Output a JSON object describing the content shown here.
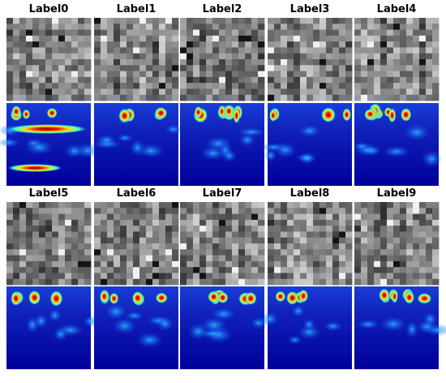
{
  "panels": [
    {
      "label": "Label0"
    },
    {
      "label": "Label1"
    },
    {
      "label": "Label2"
    },
    {
      "label": "Label3"
    },
    {
      "label": "Label4"
    },
    {
      "label": "Label5"
    },
    {
      "label": "Label6"
    },
    {
      "label": "Label7"
    },
    {
      "label": "Label8"
    },
    {
      "label": "Label9"
    }
  ]
}
